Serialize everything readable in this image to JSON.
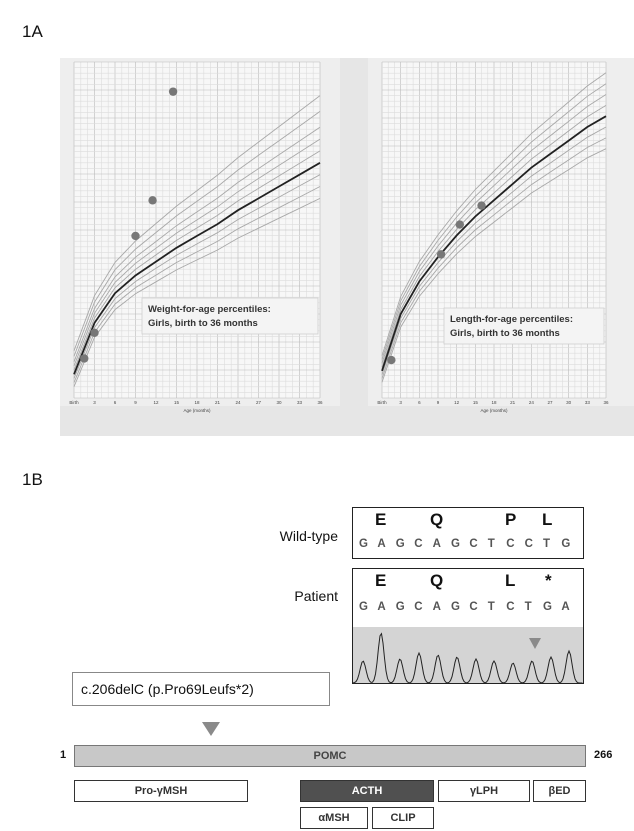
{
  "panel_a_label": "1A",
  "panel_b_label": "1B",
  "chart_data": [
    {
      "type": "line",
      "title": "Weight-for-age percentiles:",
      "subtitle": "Girls, birth to 36 months",
      "xlabel": "Age (months)",
      "x_ticks": [
        "Birth",
        "3",
        "6",
        "9",
        "12",
        "15",
        "18",
        "21",
        "24",
        "27",
        "30",
        "33",
        "36"
      ],
      "series": [
        {
          "name": "",
          "x": [
            0,
            3,
            6,
            9,
            12,
            15,
            18,
            21,
            24,
            27,
            30,
            33,
            36
          ],
          "values": [
            3.2,
            5.8,
            7.3,
            8.2,
            8.9,
            9.6,
            10.2,
            10.8,
            11.5,
            12.1,
            12.7,
            13.3,
            13.9
          ]
        }
      ],
      "patient_points": {
        "x": [
          1.5,
          3,
          9,
          11.5,
          14.5
        ],
        "y": [
          4.0,
          5.3,
          10.2,
          12.0,
          17.5
        ]
      }
    },
    {
      "type": "line",
      "title": "Length-for-age percentiles:",
      "subtitle": "Girls, birth to 36 months",
      "xlabel": "Age (months)",
      "x_ticks": [
        "Birth",
        "3",
        "6",
        "9",
        "12",
        "15",
        "18",
        "21",
        "24",
        "27",
        "30",
        "33",
        "36"
      ],
      "series": [
        {
          "name": "",
          "x": [
            0,
            3,
            6,
            9,
            12,
            15,
            18,
            21,
            24,
            27,
            30,
            33,
            36
          ],
          "values": [
            49,
            59.5,
            65.5,
            70,
            74,
            77.5,
            80.5,
            83.5,
            86.5,
            89,
            91.5,
            94,
            96
          ]
        }
      ],
      "patient_points": {
        "x": [
          1.5,
          9.5,
          12.5,
          16
        ],
        "y": [
          51,
          70.5,
          76,
          79.5
        ]
      }
    }
  ],
  "sequence": {
    "wildtype_label": "Wild-type",
    "patient_label": "Patient",
    "wildtype_aa": [
      "E",
      "Q",
      "P",
      "L"
    ],
    "wildtype_nt": [
      "G",
      "A",
      "G",
      "C",
      "A",
      "G",
      "C",
      "T",
      "C",
      "C",
      "T",
      "G"
    ],
    "patient_aa": [
      "E",
      "Q",
      "L",
      "*"
    ],
    "patient_nt": [
      "G",
      "A",
      "G",
      "C",
      "A",
      "G",
      "C",
      "T",
      "C",
      "T",
      "G",
      "A"
    ],
    "mutation": "c.206delC (p.Pro69Leufs*2)"
  },
  "protein": {
    "start": "1",
    "end": "266",
    "name": "POMC",
    "domains": [
      "Pro-γMSH",
      "ACTH",
      "γLPH",
      "βED"
    ],
    "subdomains": [
      "αMSH",
      "CLIP"
    ]
  }
}
